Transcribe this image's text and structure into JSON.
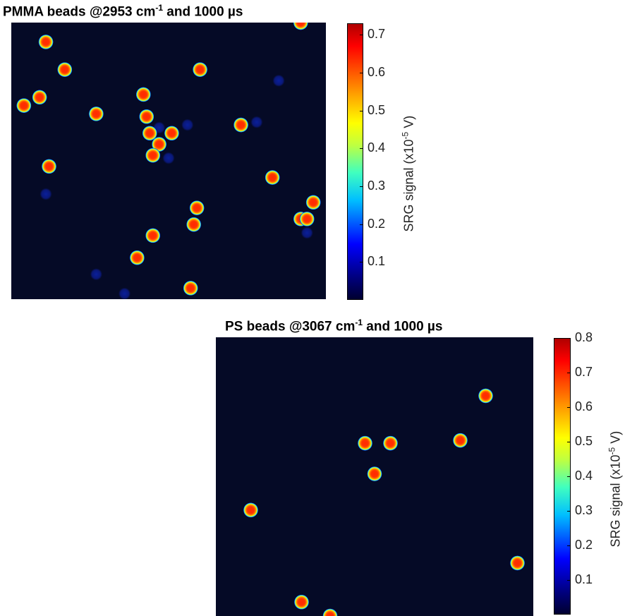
{
  "chart_data": [
    {
      "type": "heatmap",
      "title": {
        "prefix": "PMMA beads @2953 cm",
        "sup": "-1",
        "suffix": " and 1000 µs"
      },
      "colorbar": {
        "label_prefix": "SRG signal (x10",
        "label_sup": "-5",
        "label_suffix": " V)",
        "range": [
          0,
          0.73
        ],
        "ticks": [
          "0.1",
          "0.2",
          "0.3",
          "0.4",
          "0.5",
          "0.6",
          "0.7"
        ],
        "colormap": "jet"
      },
      "beads_bright": [
        [
          0.92,
          0.0
        ],
        [
          0.11,
          0.07
        ],
        [
          0.17,
          0.17
        ],
        [
          0.6,
          0.17
        ],
        [
          0.42,
          0.26
        ],
        [
          0.09,
          0.27
        ],
        [
          0.04,
          0.3
        ],
        [
          0.27,
          0.33
        ],
        [
          0.43,
          0.34
        ],
        [
          0.73,
          0.37
        ],
        [
          0.44,
          0.4
        ],
        [
          0.51,
          0.4
        ],
        [
          0.47,
          0.44
        ],
        [
          0.45,
          0.48
        ],
        [
          0.12,
          0.52
        ],
        [
          0.83,
          0.56
        ],
        [
          0.59,
          0.67
        ],
        [
          0.96,
          0.65
        ],
        [
          0.92,
          0.71
        ],
        [
          0.94,
          0.71
        ],
        [
          0.58,
          0.73
        ],
        [
          0.45,
          0.77
        ],
        [
          0.4,
          0.85
        ],
        [
          0.57,
          0.96
        ]
      ],
      "beads_faint": [
        [
          0.85,
          0.21
        ],
        [
          0.78,
          0.36
        ],
        [
          0.56,
          0.37
        ],
        [
          0.47,
          0.38
        ],
        [
          0.5,
          0.49
        ],
        [
          0.11,
          0.62
        ],
        [
          0.94,
          0.76
        ],
        [
          0.27,
          0.91
        ],
        [
          0.36,
          0.98
        ]
      ]
    },
    {
      "type": "heatmap",
      "title": {
        "prefix": "PS beads @3067 cm",
        "sup": "-1",
        "suffix": " and 1000 µs"
      },
      "colorbar": {
        "label_prefix": "SRG signal (x10",
        "label_sup": "-5",
        "label_suffix": " V)",
        "range": [
          0,
          0.8
        ],
        "ticks": [
          "0.1",
          "0.2",
          "0.3",
          "0.4",
          "0.5",
          "0.6",
          "0.7",
          "0.8"
        ],
        "colormap": "jet"
      },
      "beads_bright": [
        [
          0.85,
          0.21
        ],
        [
          0.47,
          0.38
        ],
        [
          0.55,
          0.38
        ],
        [
          0.77,
          0.37
        ],
        [
          0.5,
          0.49
        ],
        [
          0.11,
          0.62
        ],
        [
          0.95,
          0.81
        ],
        [
          0.27,
          0.95
        ],
        [
          0.36,
          1.0
        ]
      ],
      "beads_faint": []
    }
  ]
}
